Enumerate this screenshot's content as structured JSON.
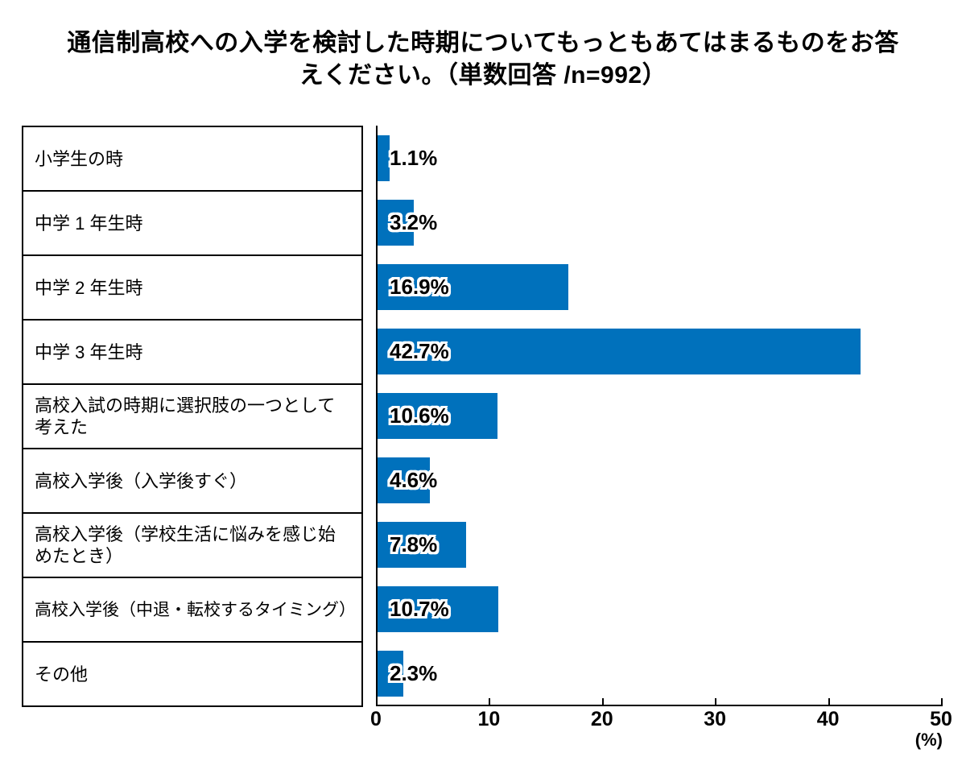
{
  "title": "通信制高校への入学を検討した時期についてもっともあてはまるものをお答\nえください。（単数回答 /n=992）",
  "chart_data": {
    "type": "bar",
    "orientation": "horizontal",
    "title": "通信制高校への入学を検討した時期についてもっともあてはまるものをお答えください。（単数回答 /n=992）",
    "n": 992,
    "categories": [
      "小学生の時",
      "中学 1 年生時",
      "中学 2 年生時",
      "中学 3 年生時",
      "高校入試の時期に選択肢の一つとして\n考えた",
      "高校入学後（入学後すぐ）",
      "高校入学後（学校生活に悩みを感じ始\nめたとき）",
      "高校入学後（中退・転校するタイミング）",
      "その他"
    ],
    "values": [
      1.1,
      3.2,
      16.9,
      42.7,
      10.6,
      4.6,
      7.8,
      10.7,
      2.3
    ],
    "value_labels": [
      "1.1%",
      "3.2%",
      "16.9%",
      "42.7%",
      "10.6%",
      "4.6%",
      "7.8%",
      "10.7%",
      "2.3%"
    ],
    "xlim": [
      0,
      50
    ],
    "x_ticks": [
      "0",
      "10",
      "20",
      "30",
      "40",
      "50"
    ],
    "x_unit": "(%)",
    "grid": false,
    "legend": "none",
    "bar_color": "#0071BC",
    "axis_color": "#000000",
    "text_color": "#000000",
    "background_color": "#FFFFFF"
  }
}
